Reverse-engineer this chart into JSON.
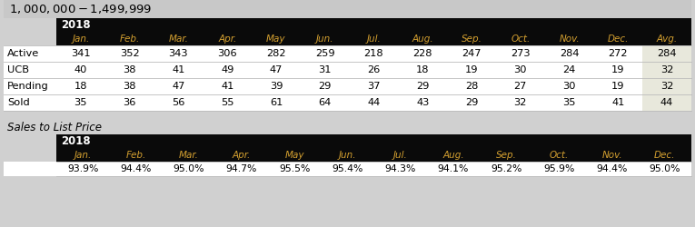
{
  "title": "$1,000,000 - $1,499,999",
  "year_label": "2018",
  "months": [
    "Jan.",
    "Feb.",
    "Mar.",
    "Apr.",
    "May",
    "Jun.",
    "Jul.",
    "Aug.",
    "Sep.",
    "Oct.",
    "Nov.",
    "Dec.",
    "Avg."
  ],
  "months_short": [
    "Jan.",
    "Feb.",
    "Mar.",
    "Apr.",
    "May",
    "Jun.",
    "Jul.",
    "Aug.",
    "Sep.",
    "Oct.",
    "Nov.",
    "Dec."
  ],
  "row_labels": [
    "Active",
    "UCB",
    "Pending",
    "Sold"
  ],
  "data": {
    "Active": [
      341,
      352,
      343,
      306,
      282,
      259,
      218,
      228,
      247,
      273,
      284,
      272,
      284
    ],
    "UCB": [
      40,
      38,
      41,
      49,
      47,
      31,
      26,
      18,
      19,
      30,
      24,
      19,
      32
    ],
    "Pending": [
      18,
      38,
      47,
      41,
      39,
      29,
      37,
      29,
      28,
      27,
      30,
      19,
      32
    ],
    "Sold": [
      35,
      36,
      56,
      55,
      61,
      64,
      44,
      43,
      29,
      32,
      35,
      41,
      44
    ]
  },
  "sales_to_list": [
    "93.9%",
    "94.4%",
    "95.0%",
    "94.7%",
    "95.5%",
    "95.4%",
    "94.3%",
    "94.1%",
    "95.2%",
    "95.9%",
    "94.4%",
    "95.0%"
  ],
  "header_bg": "#0a0a0a",
  "header_fg": "#ffffff",
  "col_header_fg": "#d4a030",
  "title_bg": "#c8c8c8",
  "avg_bg": "#e8e8dc",
  "table_bg": "#ffffff",
  "row_label_fg": "#000000",
  "data_fg": "#000000",
  "section2_label": "Sales to List Price",
  "grid_color": "#bbbbbb",
  "fig_bg": "#d0d0d0"
}
